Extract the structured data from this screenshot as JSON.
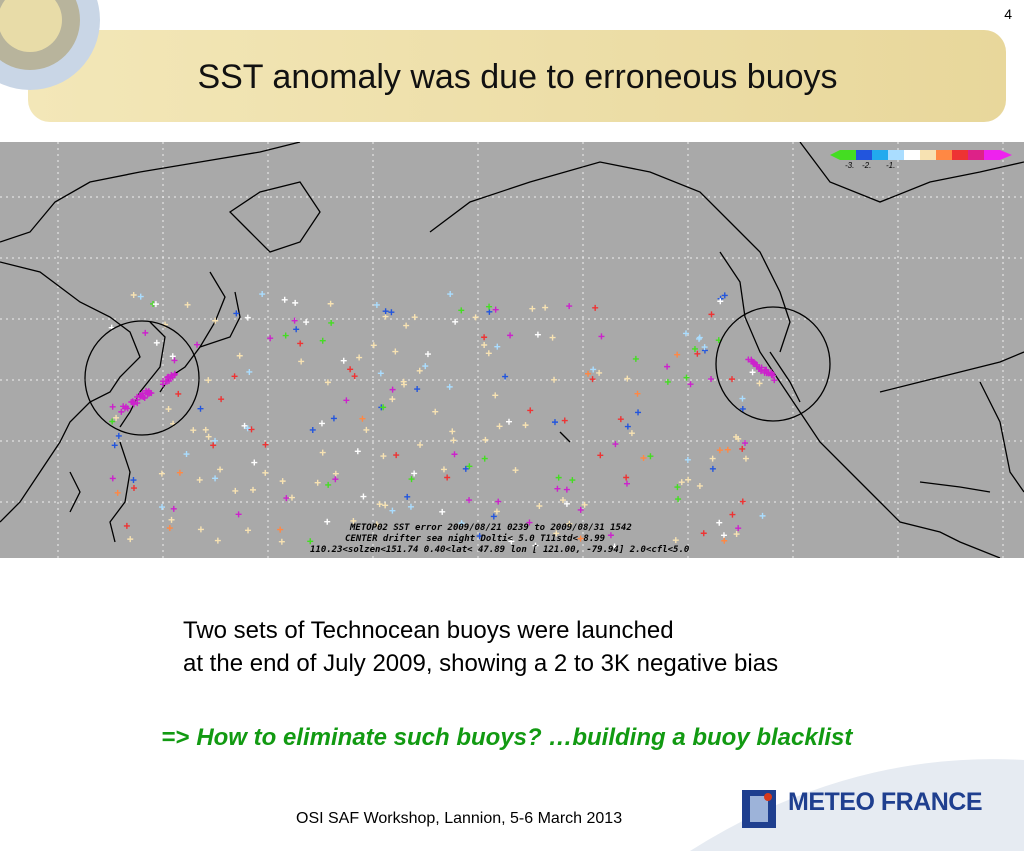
{
  "slide": {
    "page_number": "4",
    "title": "SST anomaly was due to erroneous buoys",
    "map": {
      "legend_labels": [
        "-3.",
        "-2.",
        "-1."
      ],
      "caption": [
        "METOP02  SST error  2009/08/21 0239 to 2009/08/31 1542",
        "CENTER  drifter  sea  night Dolti< 5.0  T11std< 8.99",
        "110.23<solzen<151.74    0.40<lat< 47.89  lon [ 121.00, -79.94]  2.0<cfl<5.0"
      ]
    },
    "body": [
      "Two sets of Technocean buoys were launched",
      "at the end of July 2009, showing a 2 to 3K negative bias"
    ],
    "conclusion": {
      "arrow": "=>",
      "text": "How to eliminate such buoys? …building a buoy blacklist"
    },
    "footer": "OSI SAF Workshop, Lannion, 5-6 March 2013",
    "logo": "METEO FRANCE"
  }
}
